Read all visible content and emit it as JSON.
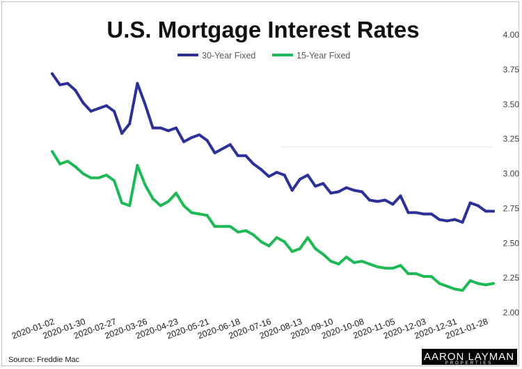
{
  "chart_data": {
    "type": "line",
    "title": "U.S. Mortgage Interest Rates",
    "xlabel": "",
    "ylabel": "",
    "ylim": [
      2.0,
      4.0
    ],
    "yticks": [
      "4.00",
      "3.75",
      "3.50",
      "3.25",
      "3.00",
      "2.75",
      "2.50",
      "2.25",
      "2.00"
    ],
    "xtick_labels": [
      "2020-01-02",
      "2020-01-30",
      "2020-02-27",
      "2020-03-26",
      "2020-04-23",
      "2020-05-21",
      "2020-06-18",
      "2020-07-16",
      "2020-08-13",
      "2020-09-10",
      "2020-10-08",
      "2020-11-05",
      "2020-12-03",
      "2020-12-31",
      "2021-01-28"
    ],
    "grid": false,
    "legend_position": "top-center",
    "x": [
      "2020-01-02",
      "2020-01-09",
      "2020-01-16",
      "2020-01-23",
      "2020-01-30",
      "2020-02-06",
      "2020-02-13",
      "2020-02-20",
      "2020-02-27",
      "2020-03-05",
      "2020-03-12",
      "2020-03-19",
      "2020-03-26",
      "2020-04-02",
      "2020-04-09",
      "2020-04-16",
      "2020-04-23",
      "2020-04-30",
      "2020-05-07",
      "2020-05-14",
      "2020-05-21",
      "2020-05-28",
      "2020-06-04",
      "2020-06-11",
      "2020-06-18",
      "2020-06-25",
      "2020-07-02",
      "2020-07-09",
      "2020-07-16",
      "2020-07-23",
      "2020-07-30",
      "2020-08-06",
      "2020-08-13",
      "2020-08-20",
      "2020-08-27",
      "2020-09-03",
      "2020-09-10",
      "2020-09-17",
      "2020-09-24",
      "2020-10-01",
      "2020-10-08",
      "2020-10-15",
      "2020-10-22",
      "2020-10-29",
      "2020-11-05",
      "2020-11-12",
      "2020-11-19",
      "2020-11-25",
      "2020-12-03",
      "2020-12-10",
      "2020-12-17",
      "2020-12-23",
      "2020-12-31",
      "2021-01-07",
      "2021-01-14",
      "2021-01-21",
      "2021-01-28",
      "2021-02-04"
    ],
    "series": [
      {
        "name": "30-Year Fixed",
        "color": "#2b3196",
        "values": [
          3.72,
          3.64,
          3.65,
          3.6,
          3.51,
          3.45,
          3.47,
          3.49,
          3.45,
          3.29,
          3.36,
          3.65,
          3.5,
          3.33,
          3.33,
          3.31,
          3.33,
          3.23,
          3.26,
          3.28,
          3.24,
          3.15,
          3.18,
          3.21,
          3.13,
          3.13,
          3.07,
          3.03,
          2.98,
          3.01,
          2.99,
          2.88,
          2.96,
          2.99,
          2.91,
          2.93,
          2.86,
          2.87,
          2.9,
          2.88,
          2.87,
          2.81,
          2.8,
          2.81,
          2.78,
          2.84,
          2.72,
          2.72,
          2.71,
          2.71,
          2.67,
          2.66,
          2.67,
          2.65,
          2.79,
          2.77,
          2.73,
          2.73
        ]
      },
      {
        "name": "15-Year Fixed",
        "color": "#1db954",
        "values": [
          3.16,
          3.07,
          3.09,
          3.05,
          3.0,
          2.97,
          2.97,
          2.99,
          2.95,
          2.79,
          2.77,
          3.06,
          2.92,
          2.82,
          2.77,
          2.8,
          2.86,
          2.77,
          2.72,
          2.71,
          2.7,
          2.62,
          2.62,
          2.62,
          2.58,
          2.59,
          2.56,
          2.51,
          2.48,
          2.54,
          2.51,
          2.44,
          2.46,
          2.54,
          2.46,
          2.42,
          2.37,
          2.35,
          2.4,
          2.36,
          2.37,
          2.35,
          2.33,
          2.32,
          2.32,
          2.34,
          2.28,
          2.28,
          2.26,
          2.26,
          2.21,
          2.19,
          2.17,
          2.16,
          2.23,
          2.21,
          2.2,
          2.21
        ]
      }
    ]
  },
  "source_text": "Source: Freddie Mac",
  "logo": {
    "main": "AARON LAYMAN",
    "sub": "PROPERTIES"
  }
}
